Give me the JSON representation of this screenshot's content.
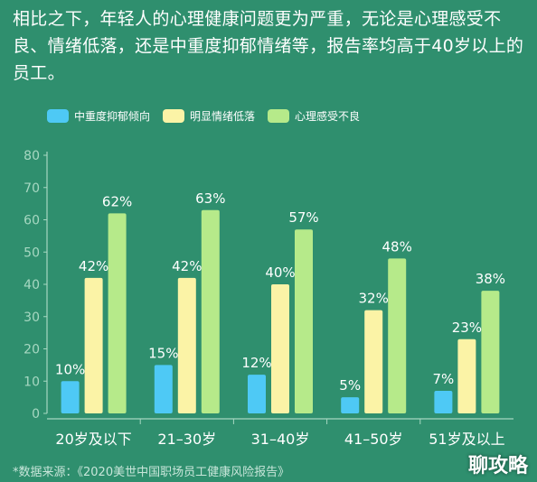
{
  "intro_text": "相比之下，年轻人的心理健康问题更为严重，无论是心理感受不良、情绪低落，还是中重度抑郁情绪等，报告率均高于40岁以上的员工。",
  "source": "*数据来源：《2020美世中国职场员工健康风险报告》",
  "watermark": "聊攻略",
  "chart_data": {
    "type": "bar",
    "categories": [
      "20岁及以下",
      "21–30岁",
      "31–40岁",
      "41–50岁",
      "51岁及以上"
    ],
    "series": [
      {
        "name": "中重度抑郁倾向",
        "values": [
          10,
          15,
          12,
          5,
          7
        ],
        "labels": [
          "10%",
          "15%",
          "12%",
          "5%",
          "7%"
        ],
        "color": "#4ec9f5"
      },
      {
        "name": "明显情绪低落",
        "values": [
          42,
          42,
          40,
          32,
          23
        ],
        "labels": [
          "42%",
          "42%",
          "40%",
          "32%",
          "23%"
        ],
        "color": "#fbf3a6"
      },
      {
        "name": "心理感受不良",
        "values": [
          62,
          63,
          57,
          48,
          38
        ],
        "labels": [
          "62%",
          "63%",
          "57%",
          "48%",
          "38%"
        ],
        "color": "#b6ea8a"
      }
    ],
    "ylim": [
      0,
      80
    ],
    "yticks": [
      0,
      10,
      20,
      30,
      40,
      50,
      60,
      70,
      80
    ],
    "grid": false,
    "legend": "top-left"
  }
}
